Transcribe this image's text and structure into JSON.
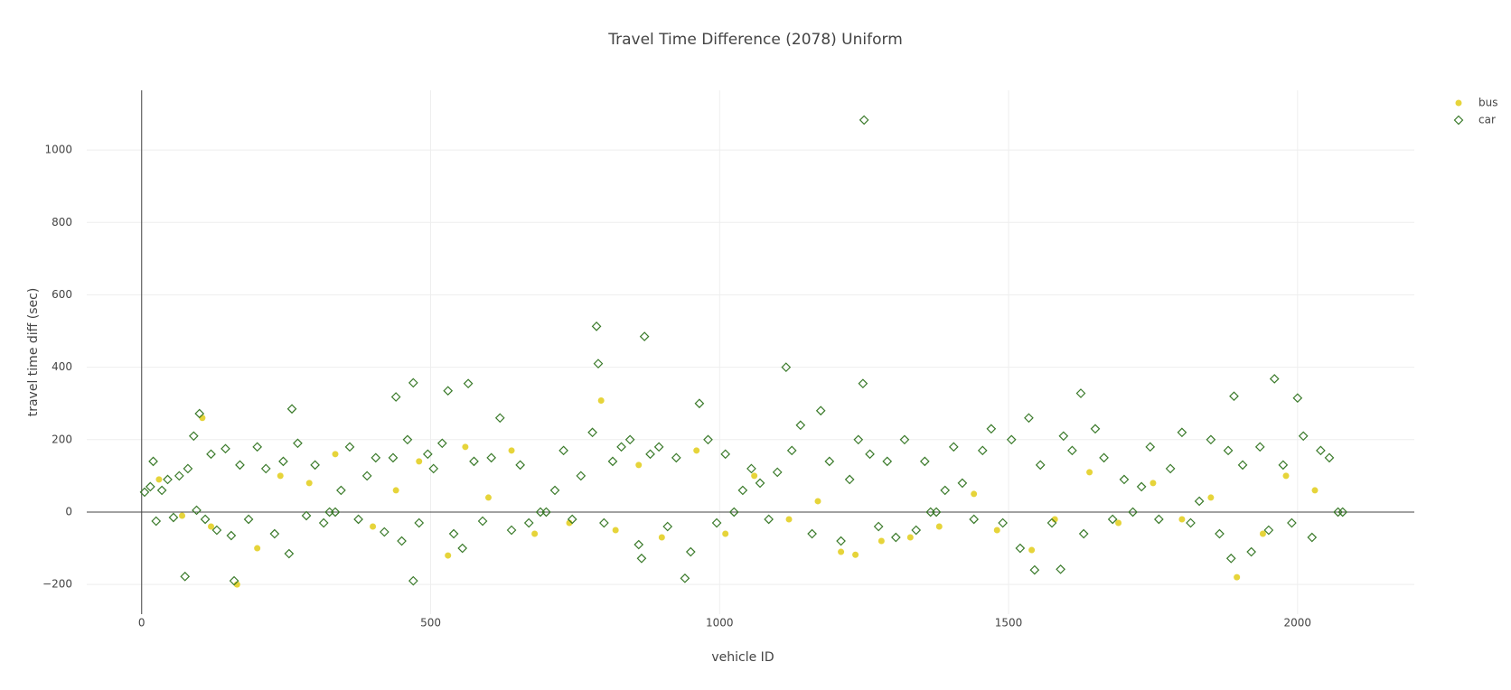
{
  "chart_data": {
    "type": "scatter",
    "title": "Travel Time Difference (2078) Uniform",
    "x_label": "vehicle ID",
    "y_label": "travel time diff (sec)",
    "xlim": [
      -95,
      2202
    ],
    "ylim": [
      -282,
      1165
    ],
    "xticks": [
      0,
      500,
      1000,
      1500,
      2000
    ],
    "yticks": [
      {
        "value": -200,
        "label": "−200"
      },
      0,
      200,
      400,
      600,
      800,
      1000
    ],
    "grid": true,
    "legend": "top-right",
    "series": [
      {
        "name": "bus",
        "color": "#e6d43a",
        "marker": "circle",
        "x": [
          30,
          70,
          105,
          120,
          165,
          200,
          240,
          290,
          335,
          400,
          440,
          480,
          530,
          560,
          600,
          640,
          680,
          740,
          795,
          820,
          860,
          900,
          960,
          1010,
          1060,
          1120,
          1170,
          1210,
          1235,
          1280,
          1330,
          1380,
          1440,
          1480,
          1540,
          1580,
          1640,
          1690,
          1750,
          1800,
          1850,
          1895,
          1940,
          1980,
          2030
        ],
        "values": [
          90,
          -10,
          260,
          -40,
          -200,
          -100,
          100,
          80,
          160,
          -40,
          60,
          140,
          -120,
          180,
          40,
          170,
          -60,
          -30,
          308,
          -50,
          130,
          -70,
          170,
          -60,
          100,
          -20,
          30,
          -110,
          -118,
          -80,
          -70,
          -40,
          50,
          -50,
          -105,
          -20,
          110,
          -30,
          80,
          -20,
          40,
          -180,
          -60,
          100,
          60
        ]
      },
      {
        "name": "car",
        "color": "#3a7a2a",
        "marker": "diamond-open",
        "x": [
          5,
          15,
          20,
          25,
          35,
          45,
          55,
          65,
          80,
          90,
          95,
          110,
          120,
          130,
          145,
          155,
          170,
          185,
          200,
          215,
          230,
          245,
          255,
          270,
          285,
          300,
          315,
          325,
          335,
          345,
          360,
          375,
          390,
          405,
          420,
          435,
          450,
          460,
          480,
          495,
          505,
          520,
          540,
          555,
          575,
          590,
          605,
          620,
          640,
          655,
          670,
          690,
          700,
          715,
          730,
          745,
          760,
          780,
          800,
          815,
          830,
          845,
          860,
          880,
          895,
          910,
          925,
          950,
          965,
          980,
          995,
          1010,
          1025,
          1040,
          1055,
          1070,
          1085,
          1100,
          1125,
          1140,
          1160,
          1175,
          1190,
          1210,
          1225,
          1240,
          1260,
          1275,
          1290,
          1305,
          1320,
          1340,
          1355,
          1365,
          1375,
          1390,
          1405,
          1420,
          1440,
          1455,
          1470,
          1490,
          1505,
          1520,
          1535,
          1555,
          1575,
          1595,
          1610,
          1630,
          1650,
          1665,
          1680,
          1700,
          1715,
          1730,
          1745,
          1760,
          1780,
          1800,
          1815,
          1830,
          1850,
          1865,
          1880,
          1905,
          1920,
          1935,
          1950,
          1975,
          1990,
          2010,
          2025,
          2040,
          2055,
          2070,
          2078,
          1250,
          787,
          870,
          790,
          1115,
          1248,
          470,
          565,
          530,
          440,
          1625,
          1960,
          1890,
          2000,
          260,
          100,
          75,
          160,
          470,
          940,
          1545,
          1590,
          1885,
          865
        ],
        "values": [
          55,
          70,
          140,
          -25,
          60,
          90,
          -15,
          100,
          120,
          210,
          5,
          -20,
          160,
          -50,
          175,
          -65,
          130,
          -20,
          180,
          120,
          -60,
          140,
          -115,
          190,
          -10,
          130,
          -30,
          0,
          0,
          60,
          180,
          -20,
          100,
          150,
          -55,
          150,
          -80,
          200,
          -30,
          160,
          120,
          190,
          -60,
          -100,
          140,
          -25,
          150,
          260,
          -50,
          130,
          -30,
          0,
          0,
          60,
          170,
          -20,
          100,
          220,
          -30,
          140,
          180,
          200,
          -90,
          160,
          180,
          -40,
          150,
          -110,
          300,
          200,
          -30,
          160,
          0,
          60,
          120,
          80,
          -20,
          110,
          170,
          240,
          -60,
          280,
          140,
          -80,
          90,
          200,
          160,
          -40,
          140,
          -70,
          200,
          -50,
          140,
          0,
          0,
          60,
          180,
          80,
          -20,
          170,
          230,
          -30,
          200,
          -100,
          260,
          130,
          -30,
          210,
          170,
          -60,
          230,
          150,
          -20,
          90,
          0,
          70,
          180,
          -20,
          120,
          220,
          -30,
          30,
          200,
          -60,
          170,
          130,
          -110,
          180,
          -50,
          130,
          -30,
          210,
          -70,
          170,
          150,
          0,
          0,
          1083,
          513,
          485,
          410,
          400,
          355,
          357,
          355,
          335,
          318,
          328,
          368,
          320,
          315,
          285,
          272,
          -178,
          -190,
          -190,
          -183,
          -160,
          -158,
          -128,
          -128
        ]
      }
    ]
  }
}
